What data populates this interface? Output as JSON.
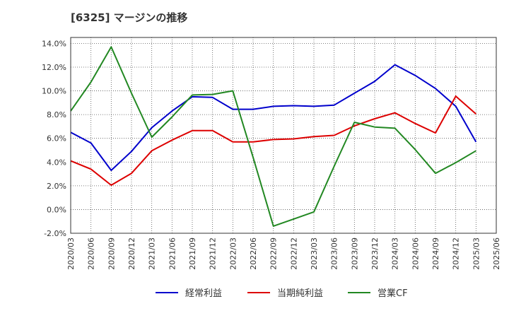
{
  "chart_data": {
    "type": "line",
    "title": "[6325]  マージンの推移",
    "xlabel": "",
    "ylabel": "",
    "x": [
      "2020/03",
      "2020/06",
      "2020/09",
      "2020/12",
      "2021/03",
      "2021/06",
      "2021/09",
      "2021/12",
      "2022/03",
      "2022/06",
      "2022/09",
      "2022/12",
      "2023/03",
      "2023/06",
      "2023/09",
      "2023/12",
      "2024/03",
      "2024/06",
      "2024/09",
      "2024/12",
      "2025/03",
      "2025/06"
    ],
    "ylim": [
      -2.0,
      14.5
    ],
    "yticks": [
      -2.0,
      0.0,
      2.0,
      4.0,
      6.0,
      8.0,
      10.0,
      12.0,
      14.0
    ],
    "ytick_labels": [
      "-2.0%",
      "0.0%",
      "2.0%",
      "4.0%",
      "6.0%",
      "8.0%",
      "10.0%",
      "12.0%",
      "14.0%"
    ],
    "grid": true,
    "legend_position": "bottom",
    "series": [
      {
        "name": "経常利益",
        "color": "#0000cc",
        "values": [
          6.5,
          5.6,
          3.3,
          4.9,
          6.9,
          8.3,
          9.5,
          9.45,
          8.45,
          8.45,
          8.7,
          8.75,
          8.7,
          8.8,
          9.8,
          10.8,
          12.2,
          11.3,
          10.2,
          8.7,
          5.7,
          null
        ]
      },
      {
        "name": "当期純利益",
        "color": "#dd0000",
        "values": [
          4.1,
          3.4,
          2.05,
          3.05,
          4.95,
          5.85,
          6.65,
          6.65,
          5.7,
          5.7,
          5.9,
          5.95,
          6.15,
          6.25,
          7.05,
          7.65,
          8.15,
          7.25,
          6.45,
          9.55,
          8.05,
          null
        ]
      },
      {
        "name": "営業CF",
        "color": "#228822",
        "values": [
          8.3,
          10.75,
          13.7,
          9.8,
          6.1,
          7.8,
          9.65,
          9.7,
          10.0,
          4.4,
          -1.4,
          -0.8,
          -0.2,
          3.65,
          7.35,
          6.95,
          6.85,
          5.05,
          3.05,
          3.95,
          4.95,
          null
        ]
      }
    ]
  }
}
